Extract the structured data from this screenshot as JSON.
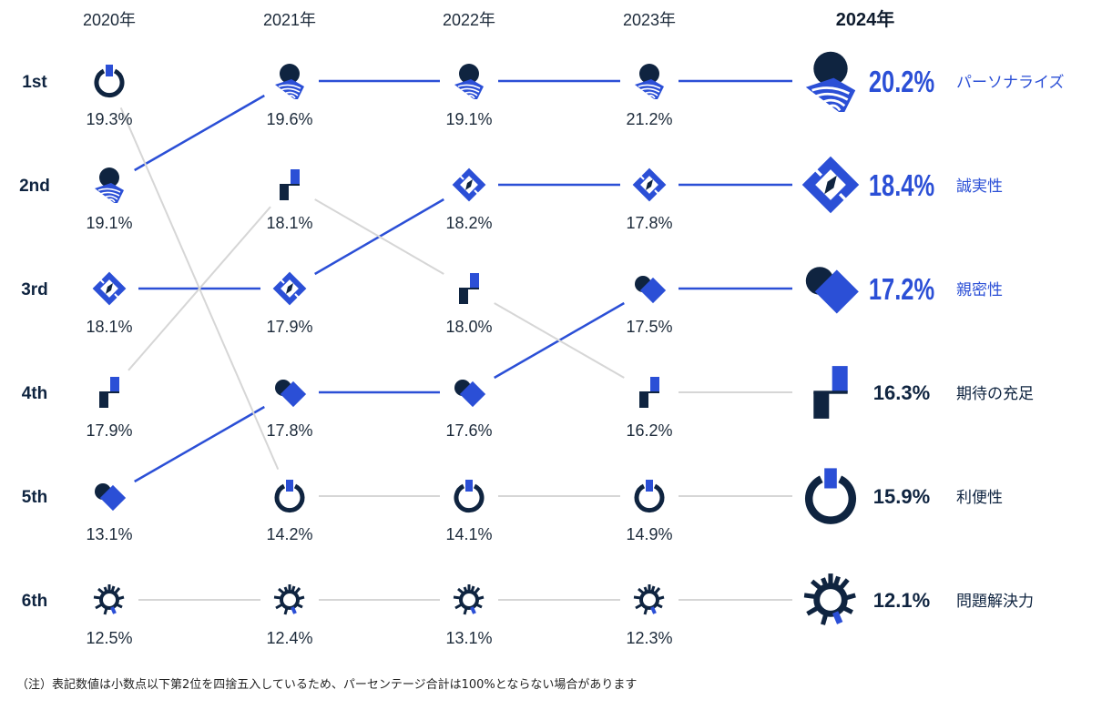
{
  "chart_data": {
    "type": "ranking",
    "years": [
      "2020年",
      "2021年",
      "2022年",
      "2023年",
      "2024年"
    ],
    "ranks": [
      "1st",
      "2nd",
      "3rd",
      "4th",
      "5th",
      "6th"
    ],
    "categories": [
      {
        "key": "personalize",
        "label": "パーソナライズ",
        "icon": "person-fingerprint-icon",
        "ranks": [
          2,
          1,
          1,
          1,
          1
        ],
        "values": [
          "19.1%",
          "19.6%",
          "19.1%",
          "21.2%",
          "20.2%"
        ],
        "highlight": true
      },
      {
        "key": "integrity",
        "label": "誠実性",
        "icon": "compass-icon",
        "ranks": [
          3,
          3,
          2,
          2,
          2
        ],
        "values": [
          "18.1%",
          "17.9%",
          "18.2%",
          "17.8%",
          "18.4%"
        ],
        "highlight": true
      },
      {
        "key": "empathy",
        "label": "親密性",
        "icon": "heart-icon",
        "ranks": [
          5,
          4,
          4,
          3,
          3
        ],
        "values": [
          "13.1%",
          "17.8%",
          "17.6%",
          "17.5%",
          "17.2%"
        ],
        "highlight": true
      },
      {
        "key": "expectations",
        "label": "期待の充足",
        "icon": "step-blocks-icon",
        "ranks": [
          4,
          2,
          3,
          4,
          4
        ],
        "values": [
          "17.9%",
          "18.1%",
          "18.0%",
          "16.2%",
          "16.3%"
        ],
        "highlight": false
      },
      {
        "key": "convenience",
        "label": "利便性",
        "icon": "power-icon",
        "ranks": [
          1,
          5,
          5,
          5,
          5
        ],
        "values": [
          "19.3%",
          "14.2%",
          "14.1%",
          "14.9%",
          "15.9%"
        ],
        "highlight": false
      },
      {
        "key": "resolution",
        "label": "問題解決力",
        "icon": "sunburst-gear-icon",
        "ranks": [
          6,
          6,
          6,
          6,
          6
        ],
        "values": [
          "12.5%",
          "12.4%",
          "13.1%",
          "12.3%",
          "12.1%"
        ],
        "highlight": false
      }
    ]
  },
  "colors": {
    "navy": "#0f2440",
    "blue": "#2b4fd6",
    "grey": "#d6d6d6",
    "text": "#1c2a3a"
  },
  "footnote": "（注）表記数値は小数点以下第2位を四捨五入しているため、パーセンテージ合計は100%とならない場合があります"
}
